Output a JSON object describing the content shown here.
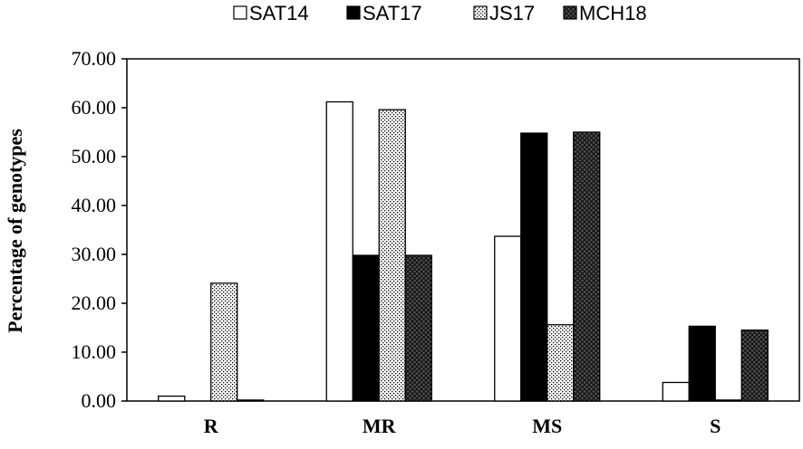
{
  "chart_data": {
    "type": "bar",
    "title": "",
    "xlabel": "",
    "ylabel": "Percentage of genotypes",
    "categories": [
      "R",
      "MR",
      "MS",
      "S"
    ],
    "series": [
      {
        "name": "SAT14",
        "values": [
          1.0,
          61.2,
          33.7,
          3.8
        ],
        "fill": "white"
      },
      {
        "name": "SAT17",
        "values": [
          0.0,
          29.8,
          54.8,
          15.3
        ],
        "fill": "black"
      },
      {
        "name": "JS17",
        "values": [
          24.1,
          59.6,
          15.6,
          0.2
        ],
        "fill": "dots"
      },
      {
        "name": "MCH18",
        "values": [
          0.2,
          29.8,
          55.0,
          14.5
        ],
        "fill": "crosshatch"
      }
    ],
    "ylim": [
      0,
      70
    ],
    "yticks": [
      "0.00",
      "10.00",
      "20.00",
      "30.00",
      "40.00",
      "50.00",
      "60.00",
      "70.00"
    ],
    "grid": false,
    "legend_position": "top"
  }
}
